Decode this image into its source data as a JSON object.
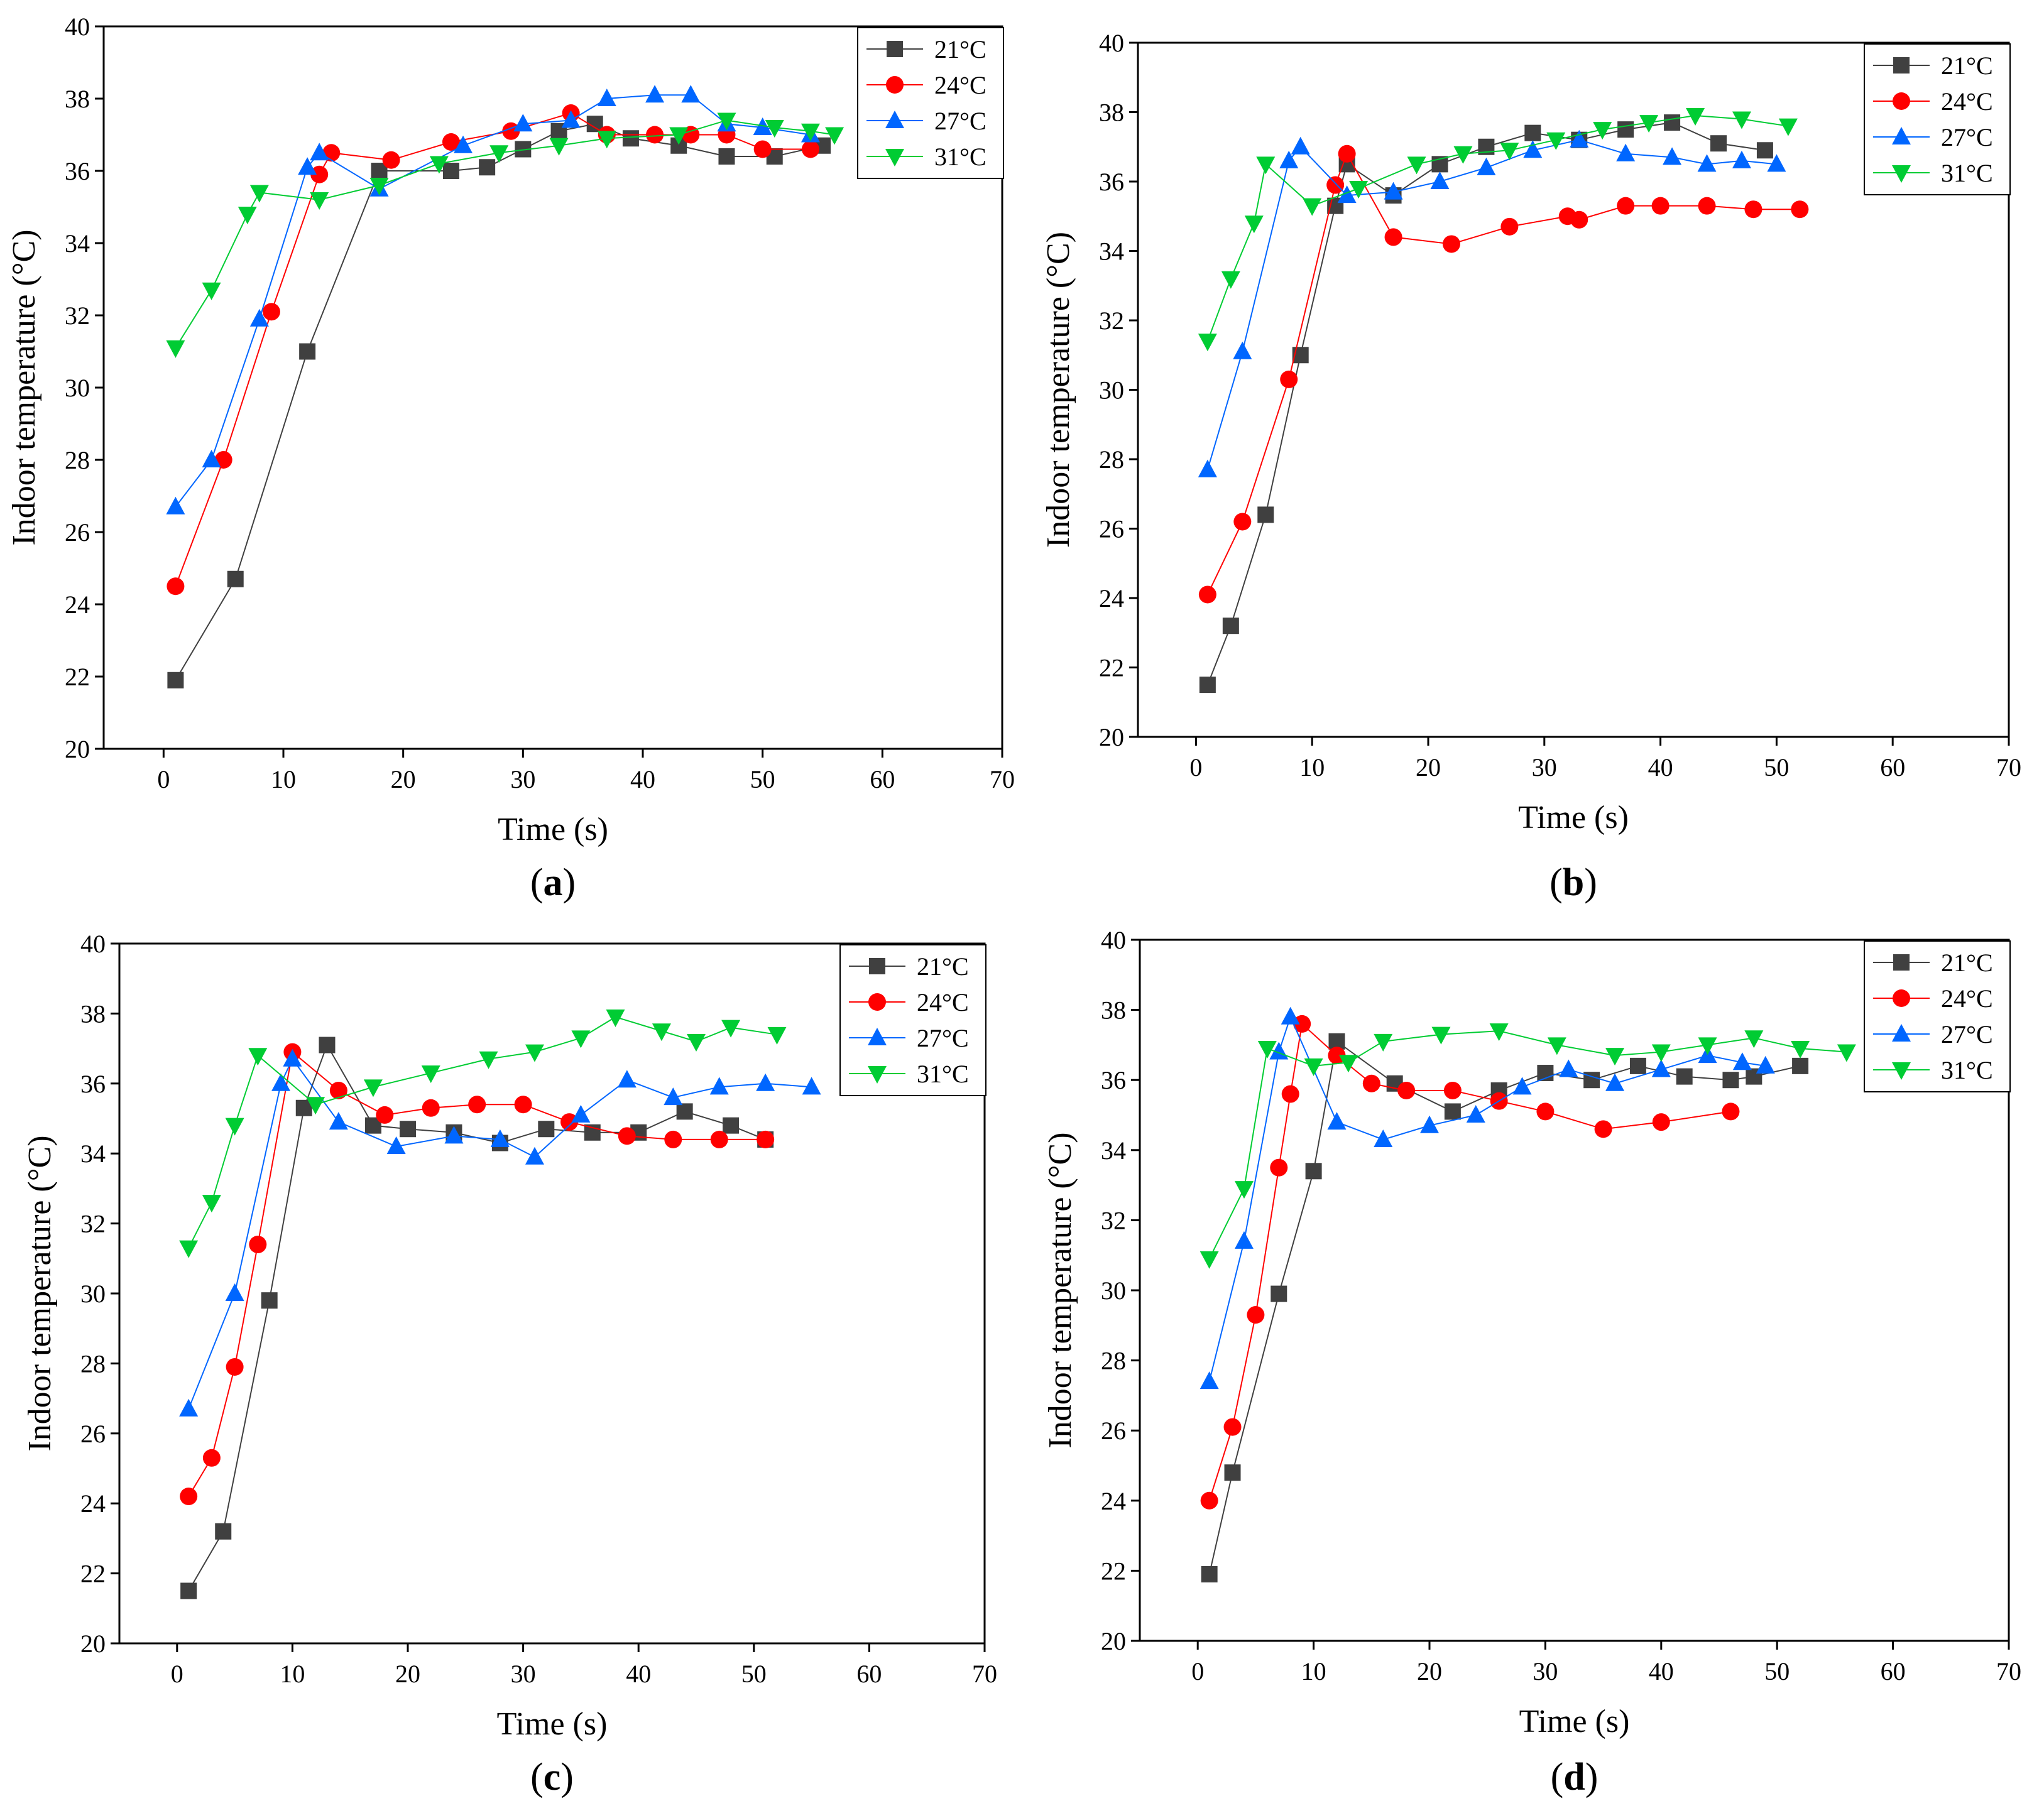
{
  "chart_data": [
    {
      "type": "line",
      "panel_label": "a",
      "xlabel": "Time (s)",
      "ylabel": "Indoor temperature (°C)",
      "xlim": [
        -5,
        70
      ],
      "ylim": [
        20,
        40
      ],
      "xticks": [
        0,
        10,
        20,
        30,
        40,
        50,
        60,
        70
      ],
      "yticks": [
        20,
        22,
        24,
        26,
        28,
        30,
        32,
        34,
        36,
        38,
        40
      ],
      "legend_position": "top-right",
      "series": [
        {
          "name": "21°C",
          "color": "#404040",
          "marker": "square",
          "x": [
            1,
            6,
            12,
            18,
            24,
            27,
            30,
            33,
            36,
            39,
            43,
            47,
            51,
            55
          ],
          "y": [
            21.9,
            24.7,
            31.0,
            36.0,
            36.0,
            36.1,
            36.6,
            37.1,
            37.3,
            36.9,
            36.7,
            36.4,
            36.4,
            36.7
          ]
        },
        {
          "name": "24°C",
          "color": "#ff0000",
          "marker": "circle",
          "x": [
            1,
            5,
            9,
            13,
            14,
            19,
            24,
            29,
            34,
            37,
            41,
            44,
            47,
            50,
            54
          ],
          "y": [
            24.5,
            28.0,
            32.1,
            35.9,
            36.5,
            36.3,
            36.8,
            37.1,
            37.6,
            37.0,
            37.0,
            37.0,
            37.0,
            36.6,
            36.6
          ]
        },
        {
          "name": "27°C",
          "color": "#0066ff",
          "marker": "triangle-up",
          "x": [
            1,
            4,
            8,
            12,
            13,
            18,
            25,
            30,
            34,
            37,
            41,
            44,
            47,
            50,
            54
          ],
          "y": [
            26.7,
            28.0,
            31.9,
            36.1,
            36.5,
            35.5,
            36.7,
            37.3,
            37.4,
            38.0,
            38.1,
            38.1,
            37.3,
            37.2,
            37.0
          ]
        },
        {
          "name": "31°C",
          "color": "#00cc33",
          "marker": "triangle-down",
          "x": [
            1,
            4,
            7,
            8,
            13,
            18,
            23,
            28,
            33,
            37,
            43,
            47,
            51,
            54,
            56
          ],
          "y": [
            31.1,
            32.7,
            34.8,
            35.4,
            35.2,
            35.6,
            36.2,
            36.5,
            36.7,
            36.9,
            37.0,
            37.4,
            37.2,
            37.1,
            37.0
          ]
        }
      ]
    },
    {
      "type": "line",
      "panel_label": "b",
      "xlabel": "Time (s)",
      "ylabel": "Indoor temperature (°C)",
      "xlim": [
        -5,
        70
      ],
      "ylim": [
        20,
        40
      ],
      "xticks": [
        0,
        10,
        20,
        30,
        40,
        50,
        60,
        70
      ],
      "yticks": [
        20,
        22,
        24,
        26,
        28,
        30,
        32,
        34,
        36,
        38,
        40
      ],
      "legend_position": "top-right",
      "series": [
        {
          "name": "21°C",
          "color": "#404040",
          "marker": "square",
          "x": [
            1,
            3,
            6,
            9,
            12,
            13,
            17,
            21,
            25,
            29,
            33,
            37,
            41,
            45,
            49
          ],
          "y": [
            21.5,
            23.2,
            26.4,
            31.0,
            35.3,
            36.5,
            35.6,
            36.5,
            37.0,
            37.4,
            37.2,
            37.5,
            37.7,
            37.1,
            36.9
          ]
        },
        {
          "name": "24°C",
          "color": "#ff0000",
          "marker": "circle",
          "x": [
            1,
            4,
            8,
            12,
            13,
            17,
            22,
            27,
            32,
            33,
            37,
            40,
            44,
            48,
            52
          ],
          "y": [
            24.1,
            26.2,
            30.3,
            35.9,
            36.8,
            34.4,
            34.2,
            34.7,
            35.0,
            34.9,
            35.3,
            35.3,
            35.3,
            35.2,
            35.2
          ]
        },
        {
          "name": "27°C",
          "color": "#0066ff",
          "marker": "triangle-up",
          "x": [
            1,
            4,
            8,
            9,
            13,
            17,
            21,
            25,
            29,
            33,
            37,
            41,
            44,
            47,
            50
          ],
          "y": [
            27.7,
            31.1,
            36.6,
            37.0,
            35.6,
            35.7,
            36.0,
            36.4,
            36.9,
            37.2,
            36.8,
            36.7,
            36.5,
            36.6,
            36.5
          ]
        },
        {
          "name": "31°C",
          "color": "#00cc33",
          "marker": "triangle-down",
          "x": [
            1,
            3,
            5,
            6,
            10,
            14,
            19,
            23,
            27,
            31,
            35,
            39,
            43,
            47,
            51
          ],
          "y": [
            31.4,
            33.2,
            34.8,
            36.5,
            35.3,
            35.8,
            36.5,
            36.8,
            36.9,
            37.2,
            37.5,
            37.7,
            37.9,
            37.8,
            37.6
          ]
        }
      ]
    },
    {
      "type": "line",
      "panel_label": "c",
      "xlabel": "Time (s)",
      "ylabel": "Indoor temperature (°C)",
      "xlim": [
        -5,
        70
      ],
      "ylim": [
        20,
        40
      ],
      "xticks": [
        0,
        10,
        20,
        30,
        40,
        50,
        60,
        70
      ],
      "yticks": [
        20,
        22,
        24,
        26,
        28,
        30,
        32,
        34,
        36,
        38,
        40
      ],
      "legend_position": "top-right",
      "series": [
        {
          "name": "21°C",
          "color": "#404040",
          "marker": "square",
          "x": [
            1,
            4,
            8,
            11,
            13,
            17,
            20,
            24,
            28,
            32,
            36,
            40,
            44,
            48,
            51
          ],
          "y": [
            21.5,
            23.2,
            29.8,
            35.3,
            37.1,
            34.8,
            34.7,
            34.6,
            34.3,
            34.7,
            34.6,
            34.6,
            35.2,
            34.8,
            34.4
          ]
        },
        {
          "name": "24°C",
          "color": "#ff0000",
          "marker": "circle",
          "x": [
            1,
            3,
            5,
            7,
            10,
            14,
            18,
            22,
            26,
            30,
            34,
            39,
            43,
            47,
            51
          ],
          "y": [
            24.2,
            25.3,
            27.9,
            31.4,
            36.9,
            35.8,
            35.1,
            35.3,
            35.4,
            35.4,
            34.9,
            34.5,
            34.4,
            34.4,
            34.4
          ]
        },
        {
          "name": "27°C",
          "color": "#0066ff",
          "marker": "triangle-up",
          "x": [
            1,
            5,
            9,
            10,
            14,
            19,
            24,
            28,
            31,
            35,
            39,
            43,
            47,
            51,
            55
          ],
          "y": [
            26.7,
            30.0,
            36.0,
            36.7,
            34.9,
            34.2,
            34.5,
            34.4,
            33.9,
            35.1,
            36.1,
            35.6,
            35.9,
            36.0,
            35.9
          ]
        },
        {
          "name": "31°C",
          "color": "#00cc33",
          "marker": "triangle-down",
          "x": [
            1,
            3,
            5,
            7,
            12,
            17,
            22,
            27,
            31,
            35,
            38,
            42,
            45,
            48,
            52
          ],
          "y": [
            31.3,
            32.6,
            34.8,
            36.8,
            35.4,
            35.9,
            36.3,
            36.7,
            36.9,
            37.3,
            37.9,
            37.5,
            37.2,
            37.6,
            37.4
          ]
        }
      ]
    },
    {
      "type": "line",
      "panel_label": "d",
      "xlabel": "Time (s)",
      "ylabel": "Indoor temperature (°C)",
      "xlim": [
        -5,
        70
      ],
      "ylim": [
        20,
        40
      ],
      "xticks": [
        0,
        10,
        20,
        30,
        40,
        50,
        60,
        70
      ],
      "yticks": [
        20,
        22,
        24,
        26,
        28,
        30,
        32,
        34,
        36,
        38,
        40
      ],
      "legend_position": "top-right",
      "series": [
        {
          "name": "21°C",
          "color": "#404040",
          "marker": "square",
          "x": [
            1,
            3,
            7,
            10,
            12,
            17,
            22,
            26,
            30,
            34,
            38,
            42,
            46,
            48,
            52
          ],
          "y": [
            21.9,
            24.8,
            29.9,
            33.4,
            37.1,
            35.9,
            35.1,
            35.7,
            36.2,
            36.0,
            36.4,
            36.1,
            36.0,
            36.1,
            36.4
          ]
        },
        {
          "name": "24°C",
          "color": "#ff0000",
          "marker": "circle",
          "x": [
            1,
            3,
            5,
            7,
            8,
            9,
            12,
            15,
            18,
            22,
            26,
            30,
            35,
            40,
            46
          ],
          "y": [
            24.0,
            26.1,
            29.3,
            33.5,
            35.6,
            37.6,
            36.7,
            35.9,
            35.7,
            35.7,
            35.4,
            35.1,
            34.6,
            34.8,
            35.1
          ]
        },
        {
          "name": "27°C",
          "color": "#0066ff",
          "marker": "triangle-up",
          "x": [
            1,
            4,
            7,
            8,
            12,
            16,
            20,
            24,
            28,
            32,
            36,
            40,
            44,
            47,
            49
          ],
          "y": [
            27.4,
            31.4,
            36.8,
            37.8,
            34.8,
            34.3,
            34.7,
            35.0,
            35.8,
            36.3,
            35.9,
            36.3,
            36.7,
            36.5,
            36.4
          ]
        },
        {
          "name": "31°C",
          "color": "#00cc33",
          "marker": "triangle-down",
          "x": [
            1,
            4,
            6,
            10,
            13,
            16,
            21,
            26,
            31,
            36,
            40,
            44,
            48,
            52,
            56
          ],
          "y": [
            30.9,
            32.9,
            36.9,
            36.4,
            36.5,
            37.1,
            37.3,
            37.4,
            37.0,
            36.7,
            36.8,
            37.0,
            37.2,
            36.9,
            36.8
          ]
        }
      ]
    }
  ]
}
